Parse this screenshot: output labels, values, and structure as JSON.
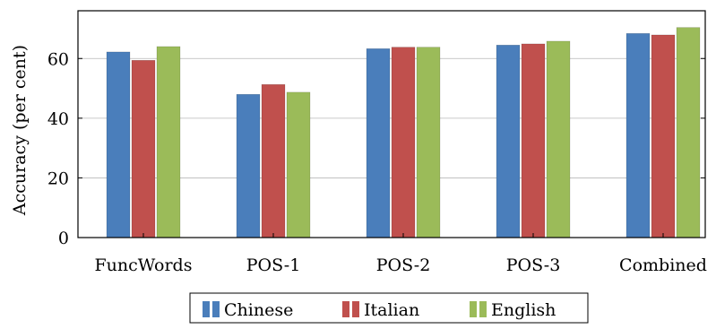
{
  "chart_data": {
    "type": "bar",
    "title": "",
    "xlabel": "",
    "ylabel": "Accuracy (per cent)",
    "categories": [
      "FuncWords",
      "POS-1",
      "POS-2",
      "POS-3",
      "Combined"
    ],
    "series": [
      {
        "name": "Chinese",
        "color": "#4a7ebb",
        "values": [
          62.2,
          48.0,
          63.3,
          64.5,
          68.4
        ]
      },
      {
        "name": "Italian",
        "color": "#c0504d",
        "values": [
          59.4,
          51.3,
          63.8,
          64.9,
          67.9
        ]
      },
      {
        "name": "English",
        "color": "#9bbb59",
        "values": [
          64.0,
          48.7,
          63.8,
          65.8,
          70.4
        ]
      }
    ],
    "ylim": [
      0,
      76
    ],
    "yticks": [
      0,
      20,
      40,
      60
    ],
    "grid": "horizontal",
    "legend_position": "bottom-center"
  }
}
